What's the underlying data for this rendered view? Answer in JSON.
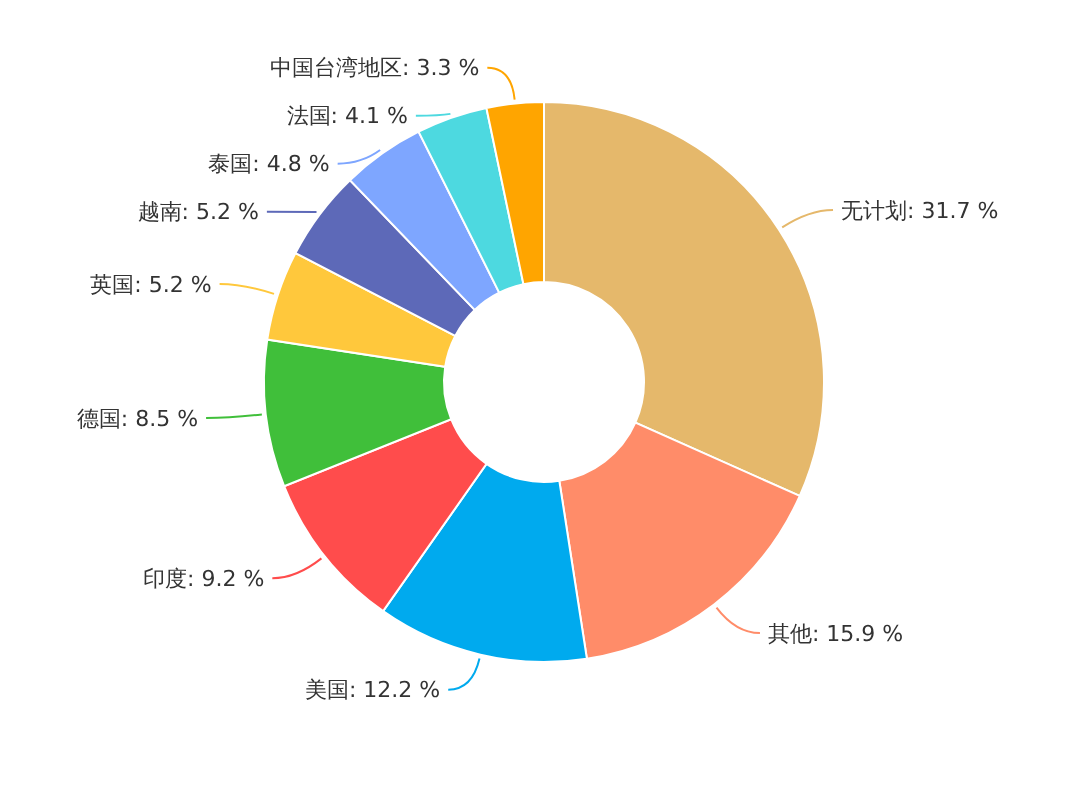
{
  "chart_data": {
    "type": "donut",
    "categories": [
      "无计划",
      "其他",
      "美国",
      "印度",
      "德国",
      "英国",
      "越南",
      "泰国",
      "法国",
      "中国台湾地区"
    ],
    "values": [
      31.7,
      15.9,
      12.2,
      9.2,
      8.5,
      5.2,
      5.2,
      4.8,
      4.1,
      3.3
    ],
    "value_labels": [
      "31.7 %",
      "15.9 %",
      "12.2 %",
      "9.2 %",
      "8.5 %",
      "5.2 %",
      "5.2 %",
      "4.8 %",
      "4.1 %",
      "3.3 %"
    ],
    "colors": [
      "#e5b86b",
      "#ff8c69",
      "#00aaee",
      "#ff4c4c",
      "#40bf3a",
      "#ffc83c",
      "#5d69b8",
      "#7ea6ff",
      "#4dd9e0",
      "#ffa500"
    ]
  }
}
